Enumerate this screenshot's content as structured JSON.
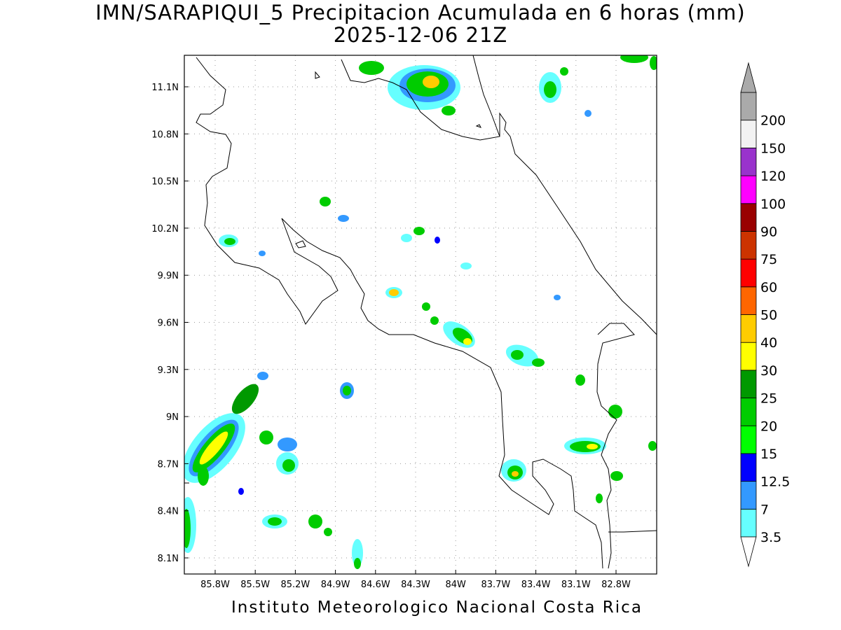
{
  "title": {
    "line1": "IMN/SARAPIQUI_5 Precipitacion Acumulada en 6 horas (mm)",
    "line2": "2025-12-06 21Z"
  },
  "footer": "Instituto Meteorologico Nacional Costa Rica",
  "axes": {
    "x_ticks": [
      "85.8W",
      "85.5W",
      "85.2W",
      "84.9W",
      "84.6W",
      "84.3W",
      "84W",
      "83.7W",
      "83.4W",
      "83.1W",
      "82.8W"
    ],
    "y_ticks": [
      "11.1N",
      "10.8N",
      "10.5N",
      "10.2N",
      "9.9N",
      "9.6N",
      "9.3N",
      "9N",
      "8.7N",
      "8.4N",
      "8.1N"
    ]
  },
  "colorbar": {
    "levels": [
      "3.5",
      "7",
      "12.5",
      "15",
      "20",
      "25",
      "30",
      "40",
      "50",
      "60",
      "75",
      "90",
      "100",
      "120",
      "150",
      "200"
    ],
    "colors": [
      "#66ffff",
      "#3399ff",
      "#0000ff",
      "#00ff00",
      "#00cc00",
      "#009900",
      "#ffff00",
      "#ffcc00",
      "#ff6600",
      "#ff0000",
      "#cc3300",
      "#990000",
      "#ff00ff",
      "#9933cc",
      "#f2f2f2",
      "#aaaaaa"
    ]
  }
}
